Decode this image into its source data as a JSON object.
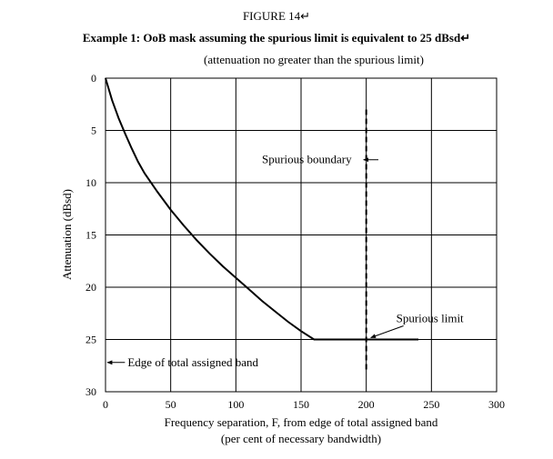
{
  "figure_label": "FIGURE 14↵",
  "title": "Example 1: OoB mask assuming the spurious limit is equivalent to 25 dBsd↵",
  "subtitle": "(attenuation no greater than the spurious limit)",
  "chart_data": {
    "type": "line",
    "title": "Example 1: OoB mask assuming the spurious limit is equivalent to 25 dBsd",
    "xlabel": "Frequency separation, F, from edge of total assigned band",
    "xlabel_line2": "(per cent of necessary bandwidth)",
    "ylabel": "Attenuation (dBsd)",
    "xlim": [
      0,
      300
    ],
    "ylim": [
      0,
      30
    ],
    "y_inverted": true,
    "grid": true,
    "x_ticks": [
      0,
      50,
      100,
      150,
      200,
      250,
      300
    ],
    "y_ticks": [
      0,
      5,
      10,
      15,
      20,
      25,
      30
    ],
    "series": [
      {
        "x": [
          0,
          5,
          10,
          15,
          20,
          25,
          30,
          40,
          50,
          60,
          70,
          80,
          90,
          100,
          110,
          120,
          130,
          140,
          150,
          160,
          170,
          180,
          190,
          200,
          210,
          220,
          230,
          240
        ],
        "y": [
          0,
          2.1,
          3.8,
          5.3,
          6.7,
          8.0,
          9.1,
          10.9,
          12.6,
          14.1,
          15.5,
          16.8,
          18.0,
          19.1,
          20.2,
          21.3,
          22.3,
          23.3,
          24.2,
          25,
          25,
          25,
          25,
          25,
          25,
          25,
          25,
          25
        ]
      }
    ],
    "spurious_boundary": {
      "x": 200,
      "y_from": 3,
      "y_to": 28,
      "style": "dashed"
    },
    "annotations": [
      {
        "text": "Spurious boundary",
        "x": 120,
        "y": 7.8,
        "arrow_to": [
          200,
          7.8
        ]
      },
      {
        "text": "Spurious limit",
        "x": 223,
        "y": 23,
        "arrow_to": [
          200,
          25
        ]
      },
      {
        "text": "Edge of total assigned band",
        "x": 17,
        "y": 27.2,
        "arrow_to": [
          0,
          27.2
        ]
      }
    ]
  }
}
